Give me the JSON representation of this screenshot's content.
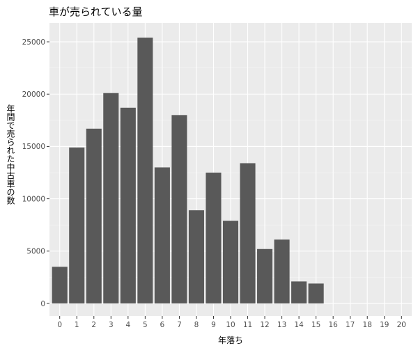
{
  "chart_data": {
    "type": "bar",
    "title": "車が売られている量",
    "xlabel": "年落ち",
    "ylabel": "年間で売られた中古車の数",
    "categories": [
      "0",
      "1",
      "2",
      "3",
      "4",
      "5",
      "6",
      "7",
      "8",
      "9",
      "10",
      "11",
      "12",
      "13",
      "14",
      "15",
      "16",
      "17",
      "18",
      "19",
      "20"
    ],
    "values": [
      3500,
      14900,
      16700,
      20100,
      18700,
      25400,
      13000,
      18000,
      8900,
      12500,
      7900,
      13400,
      5200,
      6100,
      2100,
      1900,
      0,
      0,
      0,
      0,
      0
    ],
    "yticks": [
      0,
      5000,
      10000,
      15000,
      20000,
      25000
    ],
    "ylim": [
      -1200,
      26800
    ],
    "xlim": [
      -0.6,
      20.6
    ],
    "bar_color": "#595959",
    "panel_color": "#ebebeb",
    "grid": true
  }
}
